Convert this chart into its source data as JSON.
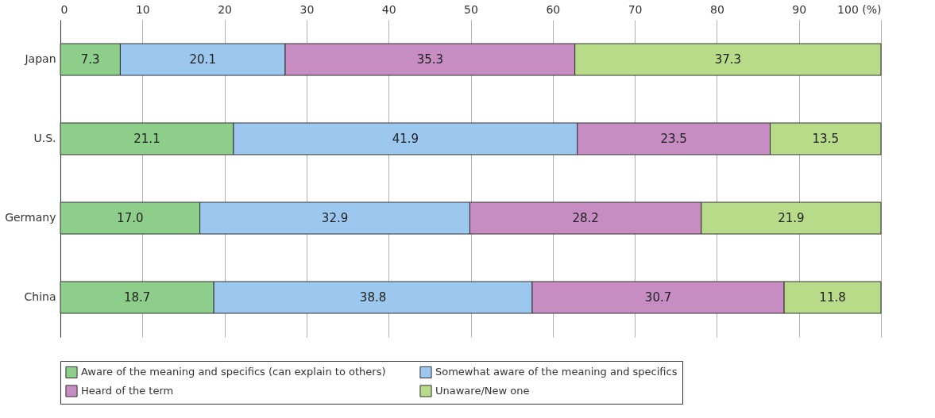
{
  "chart_data": {
    "type": "bar",
    "orientation": "horizontal",
    "stacked": true,
    "categories": [
      "Japan",
      "U.S.",
      "Germany",
      "China"
    ],
    "series": [
      {
        "name": "Aware of the meaning and specifics (can explain to others)",
        "color": "#8dcf8a",
        "values": [
          7.3,
          21.1,
          17.0,
          18.7
        ],
        "value_labels": [
          "7.3",
          "21.1",
          "17.0",
          "18.7"
        ]
      },
      {
        "name": "Somewhat aware of the meaning and specifics",
        "color": "#9cc8ef",
        "values": [
          20.1,
          41.9,
          32.9,
          38.8
        ],
        "value_labels": [
          "20.1",
          "41.9",
          "32.9",
          "38.8"
        ]
      },
      {
        "name": "Heard of the term",
        "color": "#c78dc2",
        "values": [
          35.3,
          23.5,
          28.2,
          30.7
        ],
        "value_labels": [
          "35.3",
          "23.5",
          "28.2",
          "30.7"
        ]
      },
      {
        "name": "Unaware/New one",
        "color": "#b8db8a",
        "values": [
          37.3,
          13.5,
          21.9,
          11.8
        ],
        "value_labels": [
          "37.3",
          "13.5",
          "21.9",
          "11.8"
        ]
      }
    ],
    "xlim": [
      0,
      100
    ],
    "xticks": [
      0,
      10,
      20,
      30,
      40,
      50,
      60,
      70,
      80,
      90,
      {
        "value": 100,
        "label": "100 (%)"
      }
    ],
    "grid": "x",
    "legend": "bottom"
  }
}
